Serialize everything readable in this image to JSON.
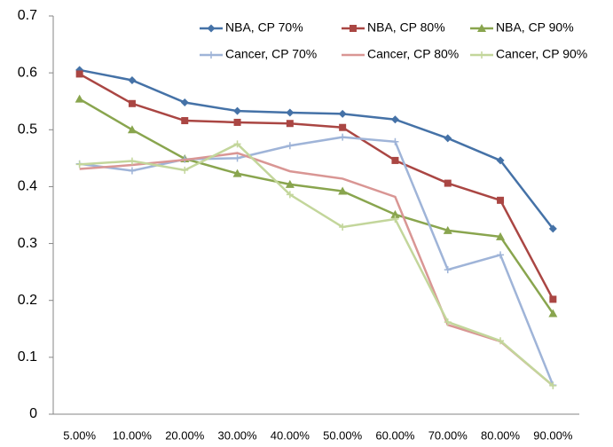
{
  "chart_data": {
    "type": "line",
    "categories": [
      "5.00%",
      "10.00%",
      "20.00%",
      "30.00%",
      "40.00%",
      "50.00%",
      "60.00%",
      "70.00%",
      "80.00%",
      "90.00%"
    ],
    "series": [
      {
        "name": "NBA, CP 70%",
        "color": "#4572a7",
        "marker": "diamond",
        "values": [
          0.605,
          0.587,
          0.548,
          0.533,
          0.53,
          0.528,
          0.518,
          0.485,
          0.446,
          0.326
        ]
      },
      {
        "name": "NBA, CP 80%",
        "color": "#aa4643",
        "marker": "square",
        "values": [
          0.598,
          0.546,
          0.516,
          0.513,
          0.511,
          0.504,
          0.446,
          0.406,
          0.376,
          0.202
        ]
      },
      {
        "name": "NBA, CP 90%",
        "color": "#89a54e",
        "marker": "triangle",
        "values": [
          0.554,
          0.5,
          0.449,
          0.423,
          0.404,
          0.392,
          0.351,
          0.323,
          0.312,
          0.177
        ]
      },
      {
        "name": "Cancer, CP 70%",
        "color": "#9fb4d8",
        "marker": "plus",
        "values": [
          0.44,
          0.428,
          0.448,
          0.45,
          0.472,
          0.487,
          0.479,
          0.254,
          0.28,
          0.051
        ]
      },
      {
        "name": "Cancer, CP 80%",
        "color": "#d99694",
        "marker": "none",
        "values": [
          0.431,
          0.438,
          0.447,
          0.459,
          0.427,
          0.414,
          0.382,
          0.157,
          0.128,
          0.05
        ]
      },
      {
        "name": "Cancer, CP 90%",
        "color": "#c3d69b",
        "marker": "plus",
        "values": [
          0.439,
          0.445,
          0.429,
          0.475,
          0.386,
          0.329,
          0.343,
          0.162,
          0.129,
          0.05
        ]
      }
    ],
    "ylim": [
      0,
      0.7
    ],
    "yticks": [
      0,
      0.1,
      0.2,
      0.3,
      0.4,
      0.5,
      0.6,
      0.7
    ],
    "grid": false,
    "legend": "top-right"
  }
}
